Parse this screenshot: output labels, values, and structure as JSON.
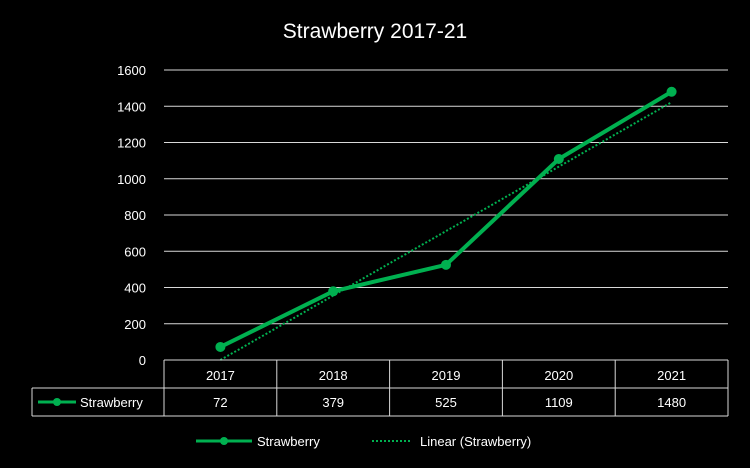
{
  "chart_data": {
    "type": "line",
    "title": "Strawberry 2017-21",
    "categories": [
      "2017",
      "2018",
      "2019",
      "2020",
      "2021"
    ],
    "series": [
      {
        "name": "Strawberry",
        "values": [
          72,
          379,
          525,
          1109,
          1480
        ],
        "color": "#00b050"
      }
    ],
    "trendline": {
      "name": "Linear (Strawberry)",
      "type": "linear",
      "style": "dotted",
      "color": "#00b050"
    },
    "y_ticks": [
      "0",
      "200",
      "400",
      "600",
      "800",
      "1000",
      "1200",
      "1400",
      "1600"
    ],
    "ylim": [
      0,
      1600
    ],
    "grid": true,
    "data_table": true,
    "legend_position": "bottom"
  }
}
